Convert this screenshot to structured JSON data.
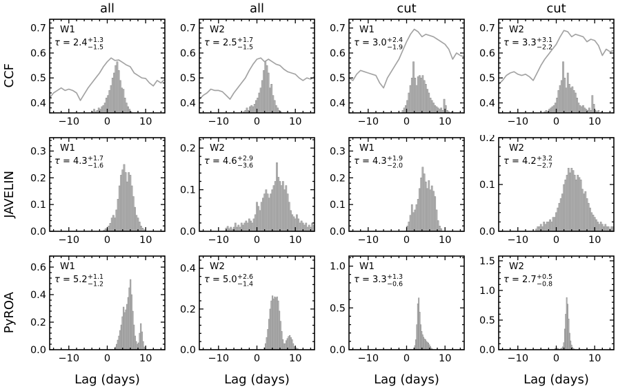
{
  "figure": {
    "col_titles": [
      "all",
      "all",
      "cut",
      "cut"
    ],
    "row_labels": [
      "CCF",
      "JAVELIN",
      "PyROA"
    ],
    "xlabel": "Lag (days)",
    "colors": {
      "line": "#a3a3a3",
      "hist_fill": "#b2b2b2",
      "hist_edge": "#898989",
      "axis": "#000000"
    }
  },
  "chart_data": {
    "type": "histogram",
    "description": "3x4 grid of lag posterior histograms; top row also shows CCF curve",
    "xlabel": "Lag (days)",
    "xlim": [
      -15,
      15
    ],
    "xticks": [
      -10,
      0,
      10
    ],
    "xtick_labels": [
      "−10",
      "0",
      "10"
    ],
    "xminor": 2,
    "panels": [
      {
        "row": "CCF",
        "col": "all",
        "band": "W1",
        "tau": "2.4",
        "plus": "+1.3",
        "minus": "−1.5",
        "ylim": [
          0.36,
          0.735
        ],
        "yticks": [
          0.4,
          0.5,
          0.6,
          0.7
        ],
        "ytick_labels": [
          "0.4",
          "0.5",
          "0.6",
          "0.7"
        ],
        "yminor": 0.02,
        "hist": {
          "x0": -4.0,
          "bin": 0.4,
          "tops": [
            0.365,
            0.375,
            0.365,
            0.37,
            0.38,
            0.375,
            0.385,
            0.39,
            0.4,
            0.42,
            0.43,
            0.45,
            0.47,
            0.5,
            0.52,
            0.55,
            0.565,
            0.53,
            0.49,
            0.46,
            0.455,
            0.42,
            0.4,
            0.385,
            0.375,
            0.365
          ]
        },
        "line": {
          "x0": -15,
          "dx": 1,
          "y": [
            0.42,
            0.44,
            0.45,
            0.46,
            0.45,
            0.455,
            0.45,
            0.44,
            0.41,
            0.435,
            0.46,
            0.48,
            0.5,
            0.52,
            0.545,
            0.565,
            0.58,
            0.57,
            0.572,
            0.562,
            0.552,
            0.545,
            0.52,
            0.51,
            0.5,
            0.498,
            0.48,
            0.468,
            0.49,
            0.48,
            0.495
          ]
        }
      },
      {
        "row": "CCF",
        "col": "all",
        "band": "W2",
        "tau": "2.5",
        "plus": "+1.7",
        "minus": "−1.5",
        "ylim": [
          0.36,
          0.735
        ],
        "yticks": [
          0.4,
          0.5,
          0.6,
          0.7
        ],
        "ytick_labels": [
          "0.4",
          "0.5",
          "0.6",
          "0.7"
        ],
        "yminor": 0.02,
        "hist": {
          "x0": -3.6,
          "bin": 0.4,
          "tops": [
            0.365,
            0.37,
            0.38,
            0.37,
            0.385,
            0.39,
            0.385,
            0.395,
            0.41,
            0.42,
            0.44,
            0.46,
            0.49,
            0.53,
            0.565,
            0.55,
            0.52,
            0.46,
            0.475,
            0.43,
            0.41,
            0.39,
            0.38,
            0.37,
            0.365,
            0.36
          ]
        },
        "line": {
          "x0": -15,
          "dx": 1,
          "y": [
            0.415,
            0.43,
            0.44,
            0.455,
            0.45,
            0.45,
            0.445,
            0.43,
            0.415,
            0.44,
            0.46,
            0.48,
            0.5,
            0.53,
            0.555,
            0.575,
            0.58,
            0.565,
            0.575,
            0.565,
            0.555,
            0.55,
            0.535,
            0.525,
            0.52,
            0.515,
            0.5,
            0.49,
            0.5,
            0.495,
            0.505
          ]
        }
      },
      {
        "row": "CCF",
        "col": "cut",
        "band": "W1",
        "tau": "3.0",
        "plus": "+2.4",
        "minus": "−1.9",
        "ylim": [
          0.36,
          0.735
        ],
        "yticks": [
          0.4,
          0.5,
          0.6,
          0.7
        ],
        "ytick_labels": [
          "0.4",
          "0.5",
          "0.6",
          "0.7"
        ],
        "yminor": 0.02,
        "hist": {
          "x0": -1.2,
          "bin": 0.4,
          "tops": [
            0.37,
            0.38,
            0.39,
            0.41,
            0.44,
            0.47,
            0.5,
            0.565,
            0.5,
            0.47,
            0.505,
            0.51,
            0.5,
            0.51,
            0.49,
            0.475,
            0.455,
            0.44,
            0.42,
            0.41,
            0.4,
            0.39,
            0.385,
            0.38,
            0.375,
            0.38,
            0.37,
            0.415,
            0.39,
            0.37,
            0.365,
            0.36,
            0.365,
            0.36
          ]
        },
        "line": {
          "x0": -15,
          "dx": 1,
          "y": [
            0.5,
            0.49,
            0.515,
            0.53,
            0.525,
            0.52,
            0.515,
            0.51,
            0.48,
            0.46,
            0.5,
            0.525,
            0.55,
            0.575,
            0.61,
            0.645,
            0.675,
            0.695,
            0.685,
            0.665,
            0.675,
            0.67,
            0.665,
            0.655,
            0.645,
            0.635,
            0.615,
            0.575,
            0.6,
            0.59,
            0.585
          ]
        }
      },
      {
        "row": "CCF",
        "col": "cut",
        "band": "W2",
        "tau": "3.3",
        "plus": "+3.1",
        "minus": "−2.2",
        "ylim": [
          0.36,
          0.735
        ],
        "yticks": [
          0.4,
          0.5,
          0.6,
          0.7
        ],
        "ytick_labels": [
          "0.4",
          "0.5",
          "0.6",
          "0.7"
        ],
        "yminor": 0.02,
        "hist": {
          "x0": -3.2,
          "bin": 0.4,
          "tops": [
            0.365,
            0.37,
            0.365,
            0.375,
            0.38,
            0.385,
            0.39,
            0.4,
            0.42,
            0.45,
            0.47,
            0.49,
            0.565,
            0.5,
            0.46,
            0.52,
            0.475,
            0.46,
            0.465,
            0.45,
            0.44,
            0.42,
            0.4,
            0.39,
            0.385,
            0.39,
            0.38,
            0.375,
            0.37,
            0.38,
            0.37,
            0.43,
            0.395,
            0.37,
            0.365,
            0.37,
            0.36,
            0.365
          ]
        },
        "line": {
          "x0": -15,
          "dx": 1,
          "y": [
            0.475,
            0.49,
            0.51,
            0.52,
            0.525,
            0.515,
            0.51,
            0.515,
            0.505,
            0.49,
            0.52,
            0.55,
            0.575,
            0.595,
            0.615,
            0.635,
            0.665,
            0.69,
            0.685,
            0.665,
            0.675,
            0.67,
            0.665,
            0.645,
            0.655,
            0.65,
            0.63,
            0.59,
            0.615,
            0.605,
            0.61
          ]
        }
      },
      {
        "row": "JAVELIN",
        "col": "all",
        "band": "W1",
        "tau": "4.3",
        "plus": "+1.7",
        "minus": "−1.6",
        "ylim": [
          0,
          0.35
        ],
        "yticks": [
          0,
          0.1,
          0.2,
          0.3
        ],
        "ytick_labels": [
          "0.0",
          "0.1",
          "0.2",
          "0.3"
        ],
        "yminor": 0.02,
        "hist": {
          "x0": -1.0,
          "bin": 0.4,
          "tops": [
            0.005,
            0.01,
            0.008,
            0.02,
            0.03,
            0.05,
            0.06,
            0.05,
            0.08,
            0.12,
            0.17,
            0.21,
            0.23,
            0.25,
            0.22,
            0.185,
            0.22,
            0.21,
            0.17,
            0.13,
            0.09,
            0.06,
            0.05,
            0.035,
            0.02,
            0.012,
            0.006
          ]
        }
      },
      {
        "row": "JAVELIN",
        "col": "all",
        "band": "W2",
        "tau": "4.6",
        "plus": "+2.9",
        "minus": "−3.6",
        "ylim": [
          0,
          0.225
        ],
        "yticks": [
          0,
          0.1,
          0.2
        ],
        "ytick_labels": [
          "0.0",
          "0.1",
          "0.2"
        ],
        "yminor": 0.02,
        "hist": {
          "x0": -8.2,
          "bin": 0.4,
          "tops": [
            0.008,
            0.012,
            0.006,
            0.01,
            0.005,
            0.01,
            0.02,
            0.01,
            0.015,
            0.01,
            0.02,
            0.015,
            0.02,
            0.025,
            0.02,
            0.03,
            0.025,
            0.02,
            0.03,
            0.04,
            0.07,
            0.06,
            0.05,
            0.07,
            0.08,
            0.09,
            0.1,
            0.09,
            0.08,
            0.09,
            0.1,
            0.11,
            0.12,
            0.165,
            0.13,
            0.12,
            0.11,
            0.12,
            0.1,
            0.11,
            0.09,
            0.07,
            0.05,
            0.04,
            0.035,
            0.03,
            0.04,
            0.03,
            0.02,
            0.025,
            0.02,
            0.015,
            0.02,
            0.01,
            0.015,
            0.01,
            0.02,
            0.015
          ]
        }
      },
      {
        "row": "JAVELIN",
        "col": "cut",
        "band": "W1",
        "tau": "4.3",
        "plus": "+1.9",
        "minus": "−2.0",
        "ylim": [
          0,
          0.35
        ],
        "yticks": [
          0,
          0.1,
          0.2,
          0.3
        ],
        "ytick_labels": [
          "0.0",
          "0.1",
          "0.2",
          "0.3"
        ],
        "yminor": 0.02,
        "hist": {
          "x0": 0.0,
          "bin": 0.4,
          "tops": [
            0.02,
            0.035,
            0.06,
            0.1,
            0.07,
            0.08,
            0.1,
            0.12,
            0.16,
            0.2,
            0.24,
            0.215,
            0.185,
            0.16,
            0.19,
            0.155,
            0.17,
            0.15,
            0.13,
            0.08,
            0.04,
            0.02,
            0.01
          ]
        }
      },
      {
        "row": "JAVELIN",
        "col": "cut",
        "band": "W2",
        "tau": "4.2",
        "plus": "+3.2",
        "minus": "−2.7",
        "ylim": [
          0,
          0.2
        ],
        "yticks": [
          0,
          0.1,
          0.2
        ],
        "ytick_labels": [
          "0.0",
          "0.1",
          "0.2"
        ],
        "yminor": 0.02,
        "hist": {
          "x0": -5.4,
          "bin": 0.4,
          "tops": [
            0.005,
            0.01,
            0.01,
            0.015,
            0.01,
            0.02,
            0.015,
            0.02,
            0.02,
            0.025,
            0.02,
            0.03,
            0.03,
            0.04,
            0.05,
            0.06,
            0.07,
            0.08,
            0.1,
            0.11,
            0.12,
            0.135,
            0.125,
            0.135,
            0.13,
            0.12,
            0.11,
            0.12,
            0.115,
            0.11,
            0.09,
            0.08,
            0.085,
            0.07,
            0.06,
            0.05,
            0.04,
            0.035,
            0.03,
            0.025,
            0.02,
            0.015,
            0.02,
            0.015,
            0.01,
            0.015,
            0.01,
            0.01,
            0.005,
            0.01,
            0.01,
            0.02,
            0.03
          ]
        }
      },
      {
        "row": "PyROA",
        "col": "all",
        "band": "W1",
        "tau": "5.2",
        "plus": "+1.1",
        "minus": "−1.2",
        "ylim": [
          0,
          0.68
        ],
        "yticks": [
          0,
          0.2,
          0.4,
          0.6
        ],
        "ytick_labels": [
          "0.0",
          "0.2",
          "0.4",
          "0.6"
        ],
        "yminor": 0.04,
        "hist": {
          "x0": 2.0,
          "bin": 0.3,
          "tops": [
            0.02,
            0.04,
            0.07,
            0.1,
            0.14,
            0.18,
            0.24,
            0.31,
            0.27,
            0.29,
            0.33,
            0.38,
            0.45,
            0.51,
            0.4,
            0.28,
            0.18,
            0.1,
            0.06,
            0.04,
            0.05,
            0.12,
            0.19,
            0.13,
            0.06,
            0.02,
            0.01
          ]
        }
      },
      {
        "row": "PyROA",
        "col": "all",
        "band": "W2",
        "tau": "5.0",
        "plus": "+2.6",
        "minus": "−1.4",
        "ylim": [
          0,
          0.46
        ],
        "yticks": [
          0,
          0.2,
          0.4
        ],
        "ytick_labels": [
          "0.0",
          "0.2",
          "0.4"
        ],
        "yminor": 0.04,
        "hist": {
          "x0": 1.8,
          "bin": 0.3,
          "tops": [
            0.01,
            0.03,
            0.06,
            0.1,
            0.15,
            0.2,
            0.24,
            0.265,
            0.25,
            0.26,
            0.255,
            0.26,
            0.24,
            0.19,
            0.14,
            0.09,
            0.05,
            0.03,
            0.03,
            0.045,
            0.055,
            0.065,
            0.07,
            0.06,
            0.05,
            0.03,
            0.015,
            0.01,
            0.008,
            0.005
          ]
        }
      },
      {
        "row": "PyROA",
        "col": "cut",
        "band": "W1",
        "tau": "3.3",
        "plus": "+1.3",
        "minus": "−0.6",
        "ylim": [
          0,
          1.12
        ],
        "yticks": [
          0,
          0.5,
          1.0
        ],
        "ytick_labels": [
          "0.0",
          "0.5",
          "1.0"
        ],
        "yminor": 0.1,
        "hist": {
          "x0": 1.8,
          "bin": 0.25,
          "tops": [
            0.02,
            0.05,
            0.12,
            0.3,
            0.55,
            0.62,
            0.45,
            0.3,
            0.22,
            0.18,
            0.15,
            0.13,
            0.12,
            0.1,
            0.09,
            0.08,
            0.06,
            0.04,
            0.02,
            0.01
          ]
        }
      },
      {
        "row": "PyROA",
        "col": "cut",
        "band": "W2",
        "tau": "2.7",
        "plus": "+0.5",
        "minus": "−0.8",
        "ylim": [
          0,
          1.58
        ],
        "yticks": [
          0,
          0.5,
          1.0,
          1.5
        ],
        "ytick_labels": [
          "0.0",
          "0.5",
          "1.0",
          "1.5"
        ],
        "yminor": 0.1,
        "hist": {
          "x0": -0.4,
          "bin": 0.25,
          "tops": [
            0.02,
            0.03,
            0.025,
            0.02,
            0.01,
            0.01,
            0.02,
            0.03,
            0.05,
            0.12,
            0.35,
            0.6,
            0.88,
            0.77,
            0.52,
            0.28,
            0.15,
            0.08,
            0.04,
            0.02,
            0.01
          ]
        }
      }
    ]
  }
}
